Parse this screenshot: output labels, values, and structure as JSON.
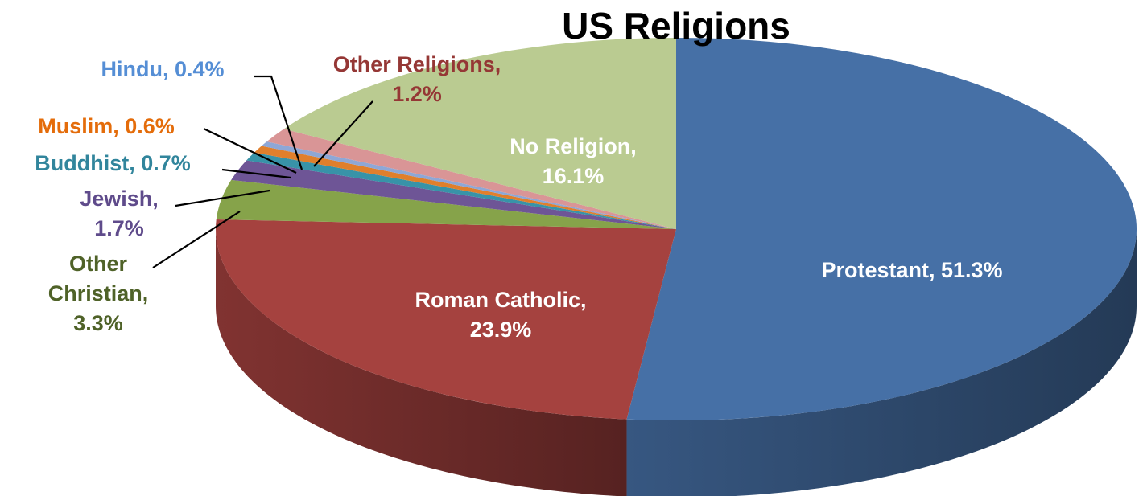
{
  "chart_data": {
    "type": "pie",
    "title": "US Religions",
    "three_d": true,
    "slices": [
      {
        "name": "Protestant",
        "value": 51.3,
        "label_lines": [
          "Protestant, 51.3%"
        ],
        "color": "#4670A6",
        "label_color": "#FFFFFF",
        "label_inside": true
      },
      {
        "name": "Roman Catholic",
        "value": 23.9,
        "label_lines": [
          "Roman Catholic,",
          "23.9%"
        ],
        "color": "#A5423F",
        "label_color": "#FFFFFF",
        "label_inside": true
      },
      {
        "name": "Other Christian",
        "value": 3.3,
        "label_lines": [
          "Other",
          "Christian,",
          "3.3%"
        ],
        "color": "#86A34A",
        "label_color": "#4F6228",
        "label_inside": false
      },
      {
        "name": "Jewish",
        "value": 1.7,
        "label_lines": [
          "Jewish,",
          "1.7%"
        ],
        "color": "#6E5596",
        "label_color": "#5F4B8B",
        "label_inside": false
      },
      {
        "name": "Buddhist",
        "value": 0.7,
        "label_lines": [
          "Buddhist, 0.7%"
        ],
        "color": "#3893A8",
        "label_color": "#31859C",
        "label_inside": false
      },
      {
        "name": "Muslim",
        "value": 0.6,
        "label_lines": [
          "Muslim, 0.6%"
        ],
        "color": "#E07F2C",
        "label_color": "#E46C0A",
        "label_inside": false
      },
      {
        "name": "Hindu",
        "value": 0.4,
        "label_lines": [
          "Hindu, 0.4%"
        ],
        "color": "#8EA7D6",
        "label_color": "#558ED5",
        "label_inside": false
      },
      {
        "name": "Other Religions",
        "value": 1.2,
        "label_lines": [
          "Other Religions,",
          "1.2%"
        ],
        "color": "#D99596",
        "label_color": "#953735",
        "label_inside": false
      },
      {
        "name": "No Religion",
        "value": 16.1,
        "label_lines": [
          "No Religion,",
          "16.1%"
        ],
        "color": "#BACB91",
        "label_color": "#FFFFFF",
        "label_inside": true
      }
    ],
    "legend": "none"
  }
}
